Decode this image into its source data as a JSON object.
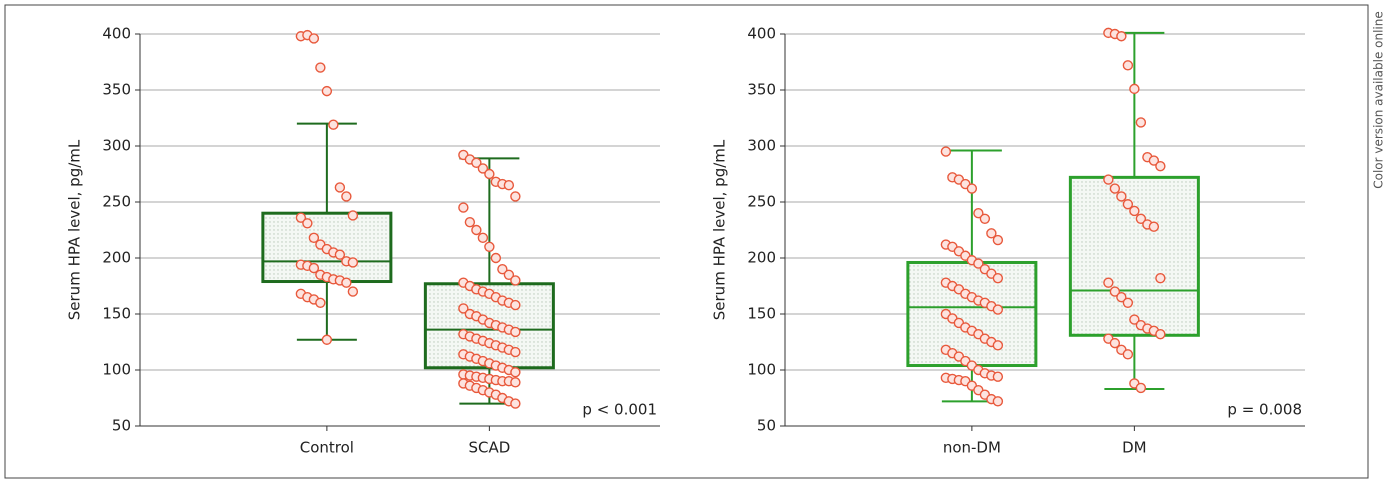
{
  "side_note": "Color version available online",
  "chart_data": [
    {
      "type": "box",
      "ylabel": "Serum HPA level, pg/mL",
      "ylim": [
        50,
        400
      ],
      "yticks": [
        50,
        100,
        150,
        200,
        250,
        300,
        350,
        400
      ],
      "annotation": "p < 0.001",
      "color": "#1e6b1e",
      "categories": [
        "Control",
        "SCAD"
      ],
      "boxes": [
        {
          "whisker_low": 127,
          "q1": 179,
          "median": 197,
          "q3": 240,
          "whisker_high": 320,
          "points": [
            398,
            399,
            396,
            370,
            349,
            319,
            263,
            255,
            238,
            236,
            231,
            218,
            212,
            208,
            205,
            203,
            197,
            196,
            194,
            193,
            191,
            185,
            183,
            181,
            180,
            178,
            170,
            168,
            165,
            163,
            160,
            127
          ]
        },
        {
          "whisker_low": 70,
          "q1": 102,
          "median": 136,
          "q3": 177,
          "whisker_high": 289,
          "points": [
            292,
            288,
            285,
            280,
            275,
            268,
            266,
            265,
            255,
            245,
            232,
            225,
            218,
            210,
            200,
            190,
            185,
            180,
            178,
            175,
            172,
            170,
            168,
            165,
            162,
            160,
            158,
            155,
            150,
            148,
            145,
            142,
            140,
            138,
            136,
            134,
            132,
            130,
            128,
            126,
            124,
            122,
            120,
            118,
            116,
            114,
            112,
            110,
            108,
            106,
            104,
            102,
            100,
            98,
            96,
            95,
            94,
            93,
            92,
            91,
            90,
            90,
            89,
            88,
            86,
            84,
            82,
            80,
            78,
            75,
            72,
            70
          ]
        }
      ]
    },
    {
      "type": "box",
      "ylabel": "Serum HPA level, pg/mL",
      "ylim": [
        50,
        400
      ],
      "yticks": [
        50,
        100,
        150,
        200,
        250,
        300,
        350,
        400
      ],
      "annotation": "p = 0.008",
      "color": "#2ca02c",
      "categories": [
        "non-DM",
        "DM"
      ],
      "boxes": [
        {
          "whisker_low": 72,
          "q1": 104,
          "median": 156,
          "q3": 196,
          "whisker_high": 296,
          "points": [
            295,
            272,
            270,
            266,
            262,
            240,
            235,
            222,
            216,
            212,
            210,
            206,
            202,
            198,
            195,
            190,
            186,
            182,
            178,
            175,
            172,
            168,
            165,
            162,
            160,
            157,
            154,
            150,
            146,
            142,
            138,
            135,
            132,
            128,
            125,
            122,
            118,
            115,
            112,
            108,
            104,
            100,
            97,
            95,
            94,
            93,
            92,
            91,
            90,
            86,
            82,
            78,
            74,
            72
          ]
        },
        {
          "whisker_low": 83,
          "q1": 131,
          "median": 171,
          "q3": 272,
          "whisker_high": 401,
          "points": [
            401,
            400,
            398,
            372,
            351,
            321,
            290,
            287,
            282,
            270,
            262,
            255,
            248,
            242,
            235,
            230,
            228,
            182,
            178,
            170,
            165,
            160,
            145,
            140,
            137,
            135,
            132,
            128,
            124,
            118,
            114,
            88,
            84
          ]
        }
      ]
    }
  ]
}
